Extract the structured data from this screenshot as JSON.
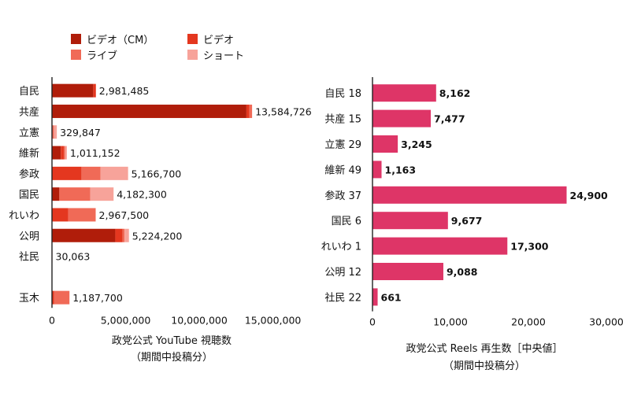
{
  "colors": {
    "cm": "#b01d0a",
    "video": "#e4371f",
    "live": "#f06a57",
    "short": "#f7a39a",
    "reels": "#de3567",
    "axis": "#222222"
  },
  "legend": [
    {
      "label": "ビデオ（CM）",
      "color_key": "cm"
    },
    {
      "label": "ビデオ",
      "color_key": "video"
    },
    {
      "label": "ライブ",
      "color_key": "live"
    },
    {
      "label": "ショート",
      "color_key": "short"
    }
  ],
  "chart_data": [
    {
      "type": "bar",
      "orientation": "horizontal",
      "stacked": true,
      "title": "政党公式 YouTube 視聴数",
      "subtitle": "（期間中投稿分）",
      "categories": [
        "自民",
        "共産",
        "立憲",
        "維新",
        "参政",
        "国民",
        "れいわ",
        "公明",
        "社民",
        "",
        "玉木"
      ],
      "series": [
        {
          "name": "ビデオ（CM）",
          "values": [
            2800000,
            13200000,
            0,
            600000,
            0,
            500000,
            0,
            4300000,
            0,
            0,
            0
          ]
        },
        {
          "name": "ビデオ",
          "values": [
            181485,
            200000,
            0,
            200000,
            2000000,
            0,
            1100000,
            500000,
            0,
            0,
            150000
          ]
        },
        {
          "name": "ライブ",
          "values": [
            0,
            184726,
            129847,
            100000,
            1300000,
            2100000,
            1867500,
            124200,
            30063,
            0,
            1037700
          ]
        },
        {
          "name": "ショート",
          "values": [
            0,
            0,
            200000,
            111152,
            1866700,
            1582300,
            0,
            300000,
            0,
            0,
            0
          ]
        }
      ],
      "totals": [
        "2,981,485",
        "13,584,726",
        "329,847",
        "1,011,152",
        "5,166,700",
        "4,182,300",
        "2,967,500",
        "5,224,200",
        "30,063",
        "",
        "1,187,700"
      ],
      "xlim": [
        0,
        17000000
      ],
      "xticks": [
        0,
        5000000,
        10000000,
        15000000
      ],
      "xtick_labels": [
        "0",
        "5,000,000",
        "10,000,000",
        "15,000,000"
      ]
    },
    {
      "type": "bar",
      "orientation": "horizontal",
      "title": "政党公式 Reels 再生数［中央値］",
      "subtitle": "（期間中投稿分）",
      "categories": [
        "自民 18",
        "共産 15",
        "立憲 29",
        "維新 49",
        "参政 37",
        "国民 6",
        "れいわ 1",
        "公明 12",
        "社民 22"
      ],
      "values": [
        8162,
        7477,
        3245,
        1163,
        24900,
        9677,
        17300,
        9088,
        661
      ],
      "value_labels": [
        "8,162",
        "7,477",
        "3,245",
        "1,163",
        "24,900",
        "9,677",
        "17,300",
        "9,088",
        "661"
      ],
      "xlim": [
        0,
        30000
      ],
      "xticks": [
        0,
        10000,
        20000,
        30000
      ],
      "xtick_labels": [
        "0",
        "10,000",
        "20,000",
        "30,000"
      ]
    }
  ]
}
